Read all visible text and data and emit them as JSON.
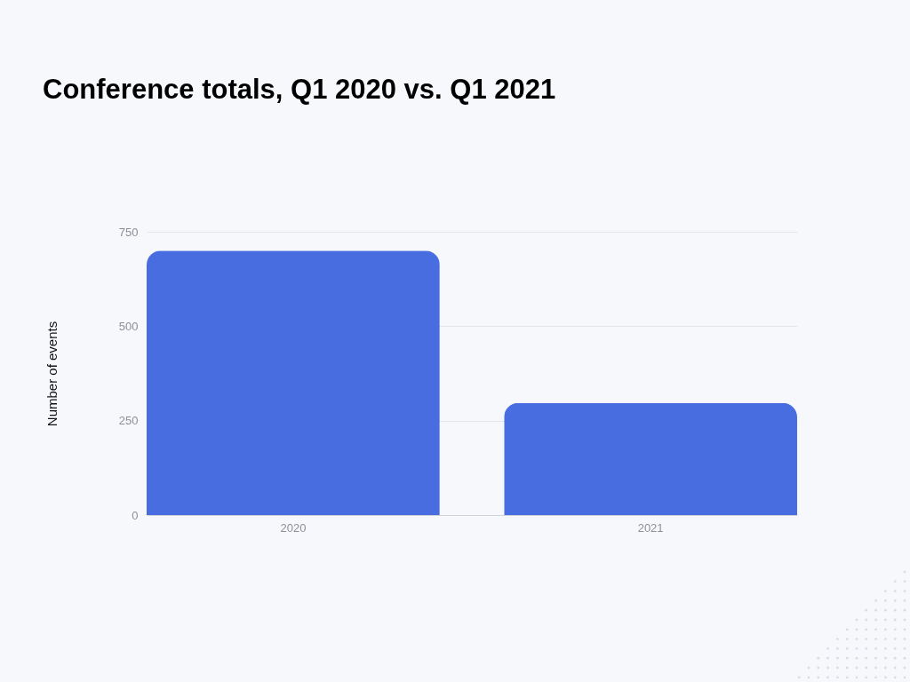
{
  "chart_data": {
    "type": "bar",
    "title": "Conference totals, Q1 2020 vs. Q1 2021",
    "ylabel": "Number of events",
    "categories": [
      "2020",
      "2021"
    ],
    "values": [
      700,
      297
    ],
    "color": "#486de0",
    "ylim": [
      0,
      750
    ],
    "yticks": [
      0,
      250,
      500,
      750
    ],
    "grid": "y"
  }
}
